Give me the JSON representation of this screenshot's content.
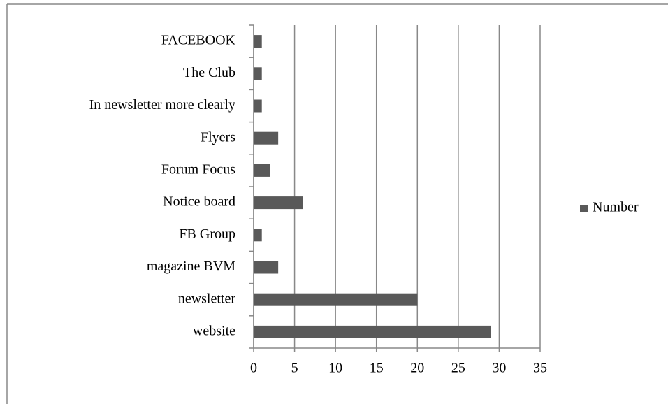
{
  "chart_data": {
    "type": "barh",
    "categories": [
      "website",
      "newsletter",
      "magazine BVM",
      "FB Group",
      "Notice board",
      "Forum Focus",
      "Flyers",
      "In newsletter more clearly",
      "The Club",
      "FACEBOOK"
    ],
    "series": [
      {
        "name": "Number",
        "color": "#595959",
        "values": [
          29,
          20,
          3,
          1,
          6,
          2,
          3,
          1,
          1,
          1
        ]
      }
    ],
    "xlim": [
      0,
      35
    ],
    "xticks": [
      0,
      5,
      10,
      15,
      20,
      25,
      30,
      35
    ],
    "grid": true,
    "legend": "right"
  }
}
